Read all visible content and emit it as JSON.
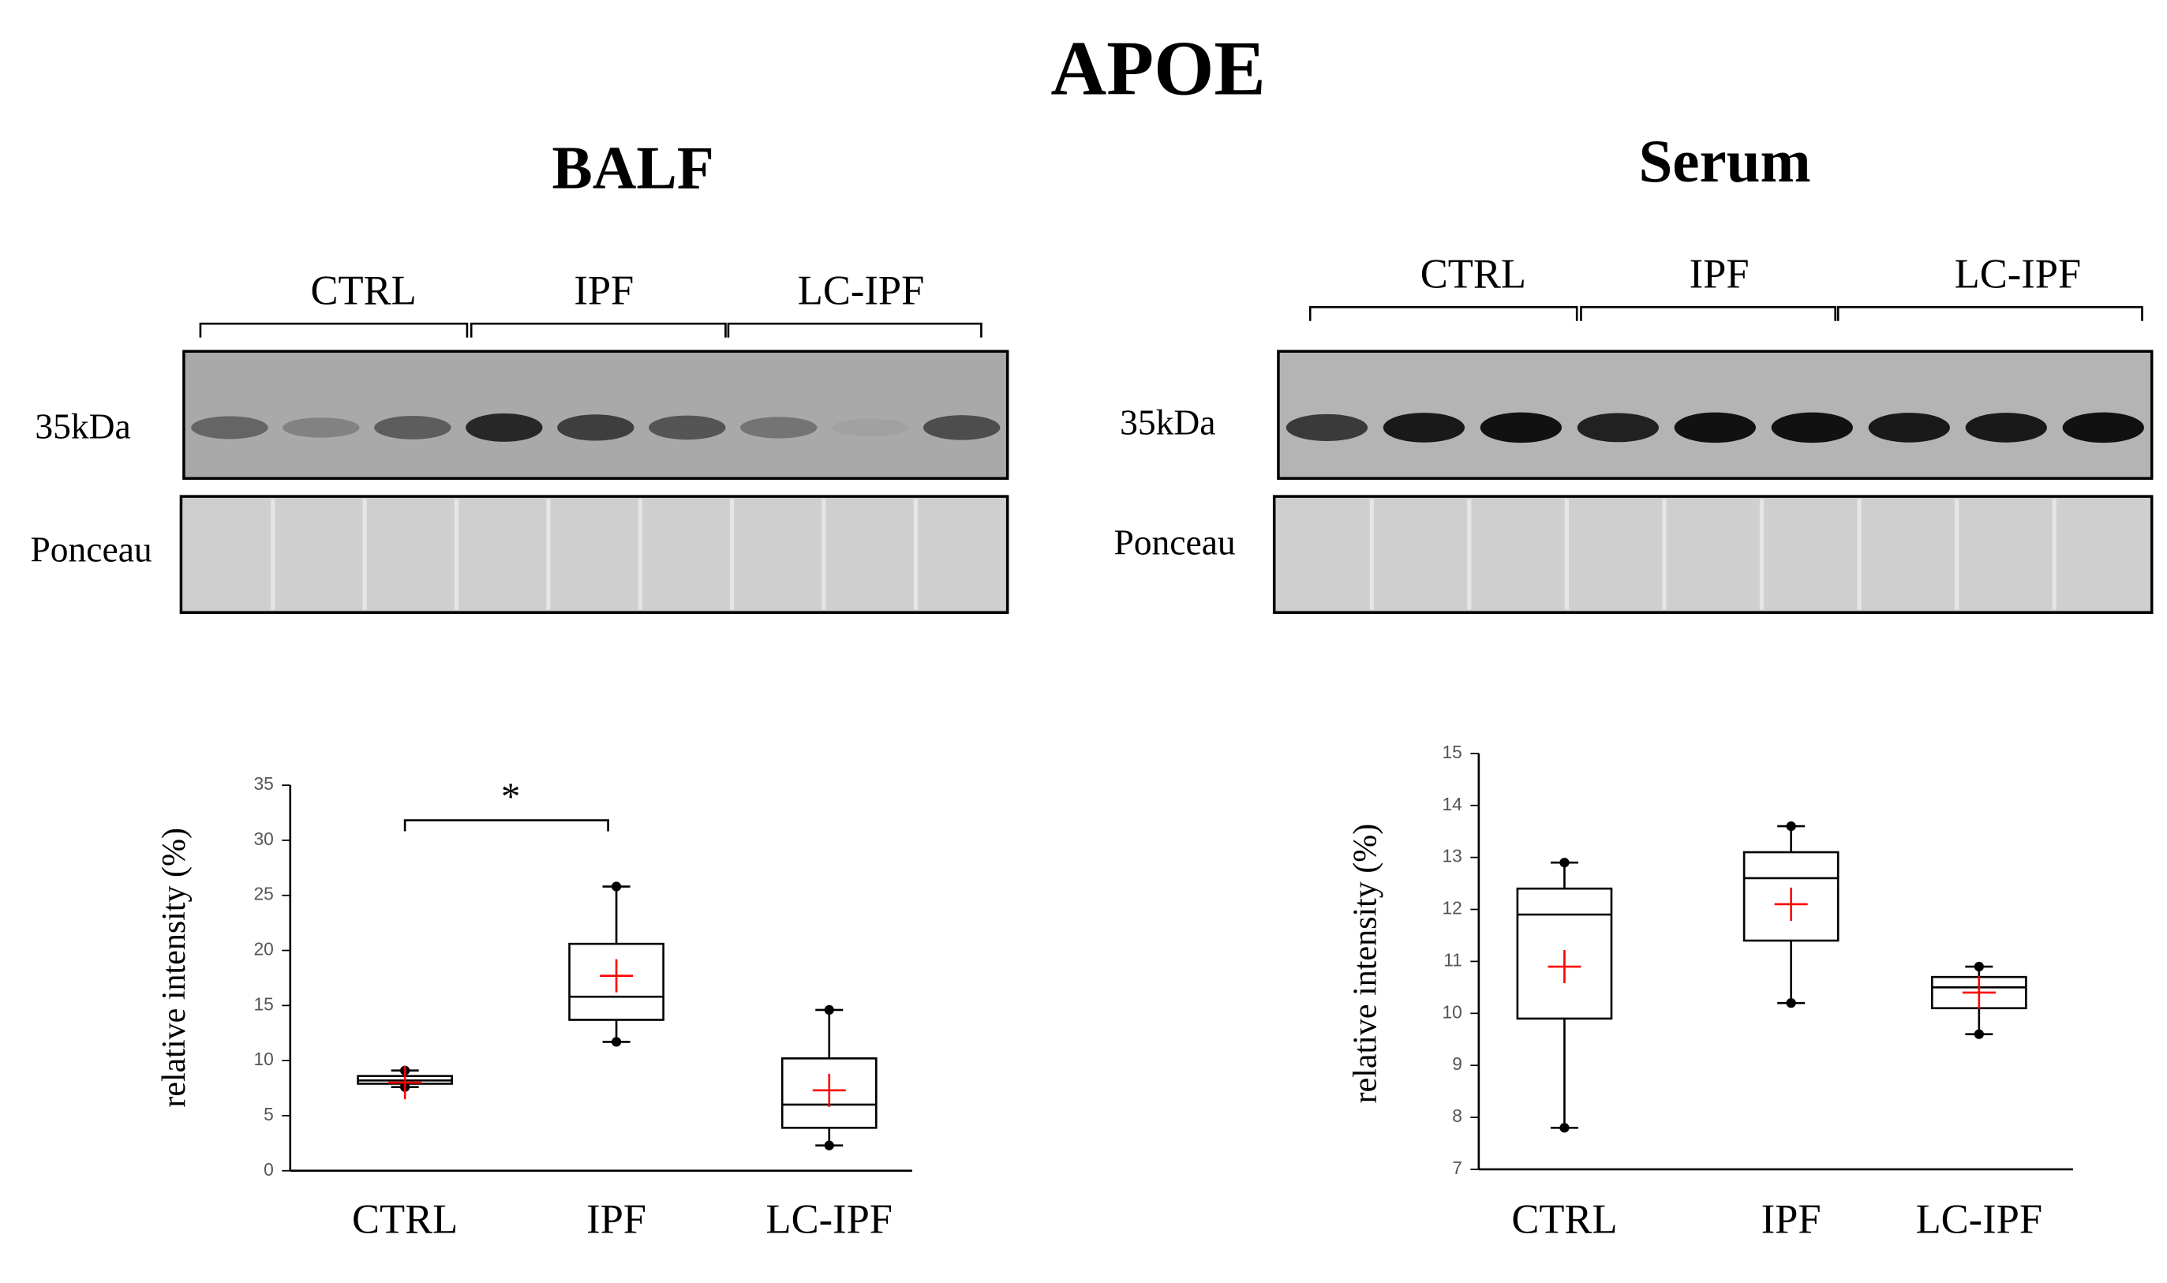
{
  "title": "APOE",
  "chart_data": [
    {
      "type": "box",
      "title": "BALF",
      "blot": {
        "groups": [
          "CTRL",
          "IPF",
          "LC-IPF"
        ],
        "rows": [
          "35kDa",
          "Ponceau"
        ]
      },
      "ylabel": "relative intensity (%)",
      "categories": [
        "CTRL",
        "IPF",
        "LC-IPF"
      ],
      "boxes": [
        {
          "min": 7.6,
          "q1": 7.9,
          "median": 8.2,
          "q3": 8.6,
          "max": 9.1,
          "mean": 8.0
        },
        {
          "min": 11.7,
          "q1": 13.7,
          "median": 15.8,
          "q3": 20.6,
          "max": 25.8,
          "mean": 17.7
        },
        {
          "min": 2.3,
          "q1": 3.9,
          "median": 6.0,
          "q3": 10.2,
          "max": 14.6,
          "mean": 7.3
        }
      ],
      "ylim": [
        0,
        35
      ],
      "yticks": [
        0,
        5,
        10,
        15,
        20,
        25,
        30,
        35
      ],
      "annotation": "*",
      "color": "#000000",
      "mean_color": "#ff0000"
    },
    {
      "type": "box",
      "title": "Serum",
      "blot": {
        "groups": [
          "CTRL",
          "IPF",
          "LC-IPF"
        ],
        "rows": [
          "35kDa",
          "Ponceau"
        ]
      },
      "ylabel": "relative intensity (%)",
      "categories": [
        "CTRL",
        "IPF",
        "LC-IPF"
      ],
      "boxes": [
        {
          "min": 7.8,
          "q1": 9.9,
          "median": 11.9,
          "q3": 12.4,
          "max": 12.9,
          "mean": 10.9
        },
        {
          "min": 10.2,
          "q1": 11.4,
          "median": 12.6,
          "q3": 13.1,
          "max": 13.6,
          "mean": 12.1
        },
        {
          "min": 9.6,
          "q1": 10.1,
          "median": 10.5,
          "q3": 10.7,
          "max": 10.9,
          "mean": 10.4
        }
      ],
      "ylim": [
        7,
        15
      ],
      "yticks": [
        7,
        8,
        9,
        10,
        11,
        12,
        13,
        14,
        15
      ],
      "color": "#000000",
      "mean_color": "#ff0000"
    }
  ]
}
